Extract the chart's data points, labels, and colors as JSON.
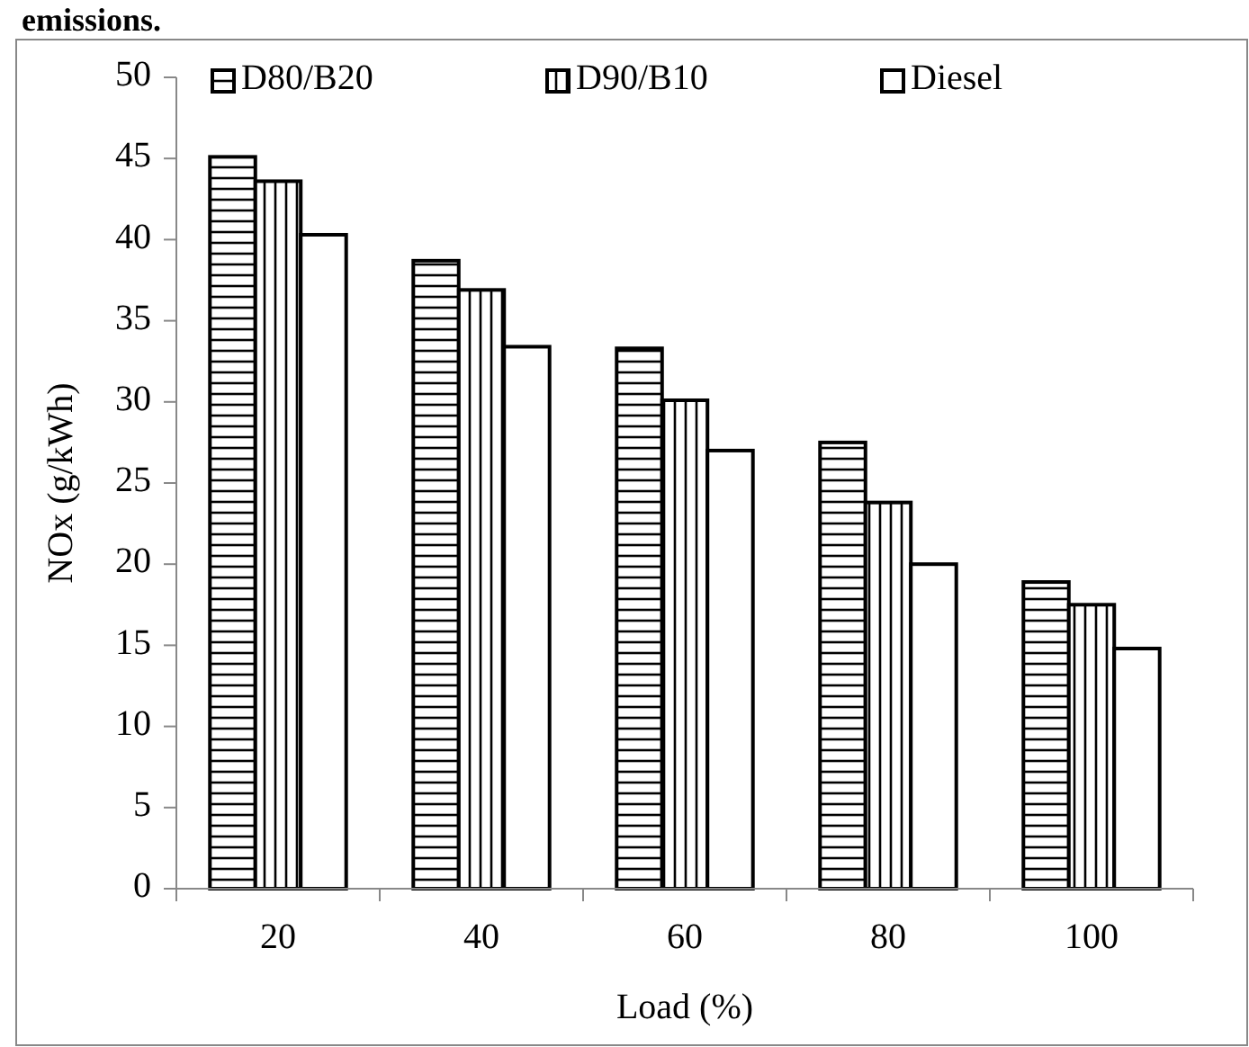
{
  "chart_data": {
    "type": "bar",
    "xlabel": "Load (%)",
    "ylabel": "NOx (g/kWh)",
    "annotations": [
      "emissions."
    ],
    "categories": [
      "20",
      "40",
      "60",
      "80",
      "100"
    ],
    "series": [
      {
        "name": "D80/B20",
        "color": "#ffffff",
        "values": [
          45.1,
          38.7,
          33.3,
          27.5,
          18.9
        ]
      },
      {
        "name": "D90/B10",
        "color": "#ffffff",
        "values": [
          43.6,
          36.9,
          30.1,
          23.8,
          17.5
        ]
      },
      {
        "name": "Diesel",
        "color": "#ffffff",
        "values": [
          40.3,
          33.4,
          27.0,
          20.0,
          14.8
        ]
      }
    ],
    "ylim": [
      0,
      50
    ],
    "yticks": [
      0,
      5,
      10,
      15,
      20,
      25,
      30,
      35,
      40,
      45,
      50
    ],
    "grid": false,
    "legend": "top"
  }
}
